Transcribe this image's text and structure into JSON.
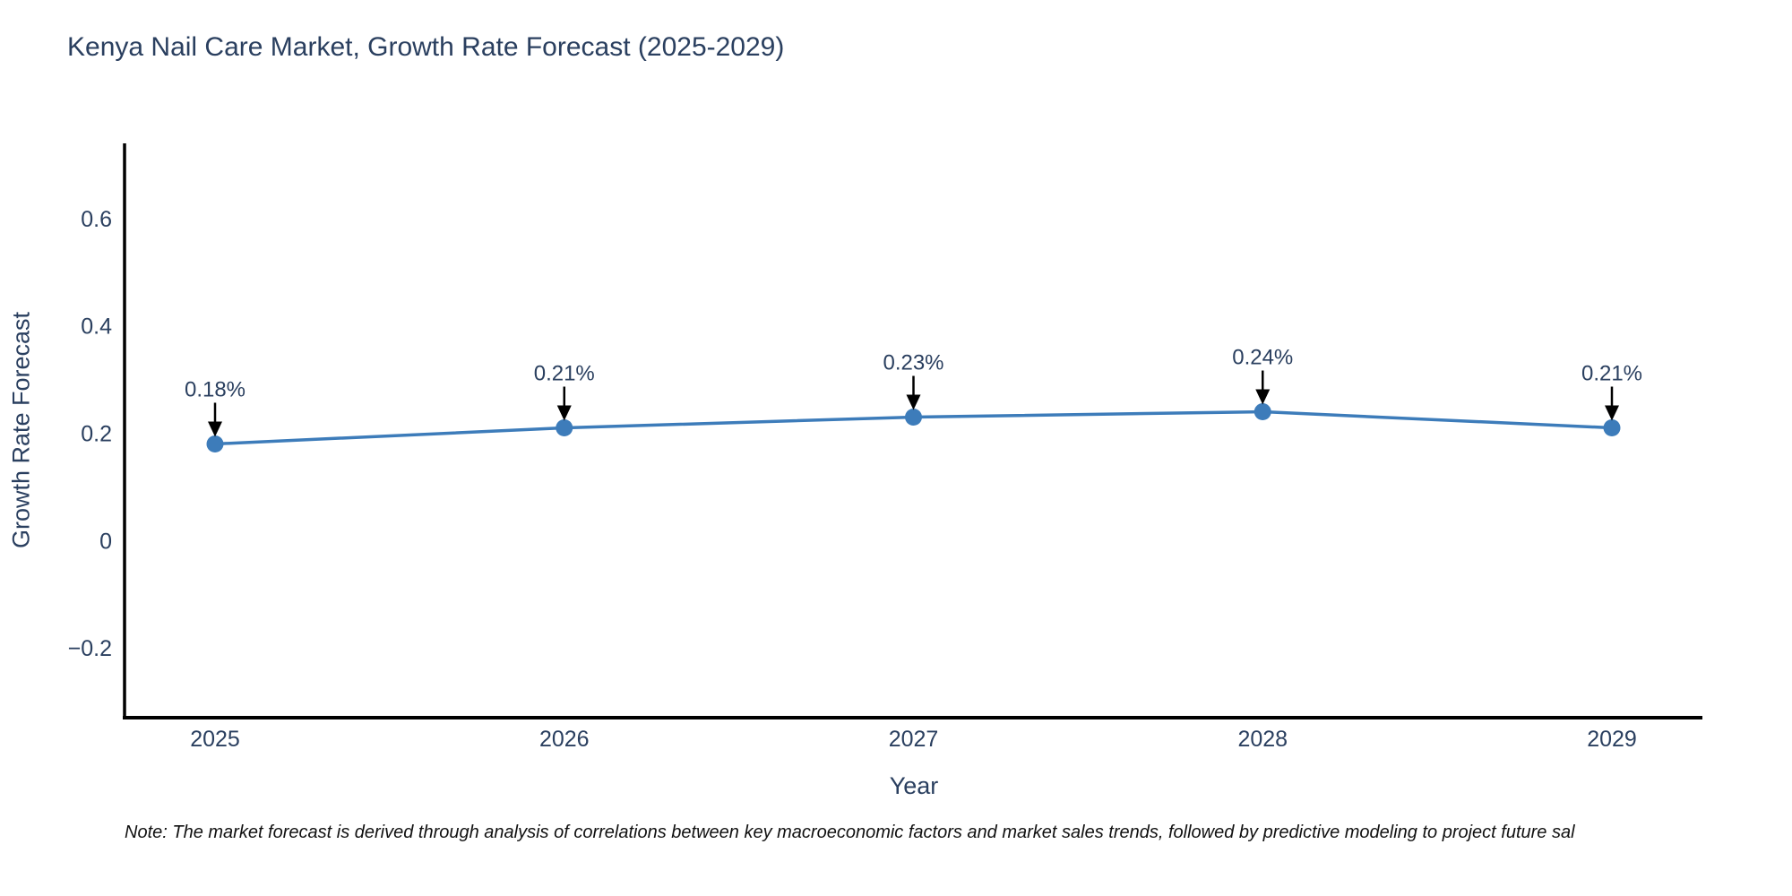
{
  "chart_data": {
    "type": "line",
    "title": "Kenya Nail Care Market, Growth Rate Forecast (2025-2029)",
    "xlabel": "Year",
    "ylabel": "Growth Rate Forecast",
    "note": "Note: The market forecast is derived through analysis of correlations between key macroeconomic factors and market sales trends, followed by predictive modeling to project future sal",
    "categories": [
      "2025",
      "2026",
      "2027",
      "2028",
      "2029"
    ],
    "series": [
      {
        "name": "Growth Rate Forecast",
        "values": [
          0.18,
          0.21,
          0.23,
          0.24,
          0.21
        ]
      }
    ],
    "point_labels": [
      "0.18%",
      "0.21%",
      "0.23%",
      "0.24%",
      "0.21%"
    ],
    "ylim": [
      -0.33,
      0.74
    ],
    "yticks": [
      -0.2,
      0,
      0.2,
      0.4,
      0.6
    ],
    "ytick_labels": [
      "−0.2",
      "0",
      "0.2",
      "0.4",
      "0.6"
    ],
    "grid": false,
    "legend_position": "none",
    "colors": {
      "line": "#3d7cba",
      "marker": "#3d7cba",
      "arrow": "#000000",
      "axis": "#000000",
      "text": "#2a3f5f"
    }
  }
}
